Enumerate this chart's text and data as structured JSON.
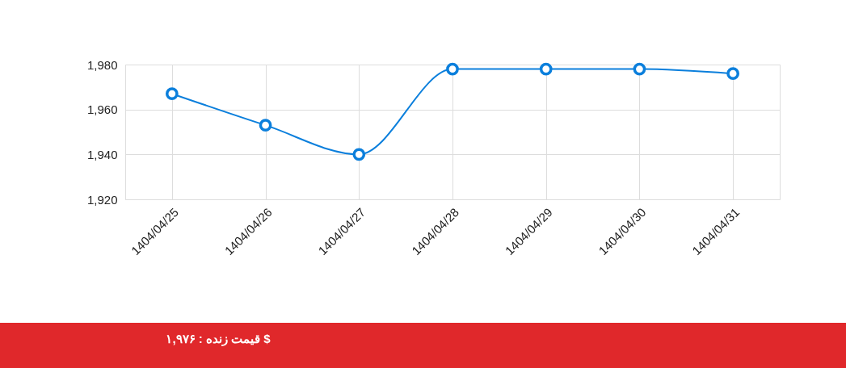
{
  "chart_data": {
    "type": "line",
    "categories": [
      "1404/04/25",
      "1404/04/26",
      "1404/04/27",
      "1404/04/28",
      "1404/04/29",
      "1404/04/30",
      "1404/04/31"
    ],
    "series": [
      {
        "color": "#0b7fdc",
        "values": [
          1967,
          1953,
          1940,
          1978,
          1978,
          1978,
          1976
        ]
      }
    ],
    "ylim": [
      1920,
      1980
    ],
    "yticks": [
      {
        "value": 1920,
        "label": "1,920"
      },
      {
        "value": 1940,
        "label": "1,940"
      },
      {
        "value": 1960,
        "label": "1,960"
      },
      {
        "value": 1980,
        "label": "1,980"
      }
    ],
    "grid": true,
    "marker": "circle",
    "line_style": "solid",
    "annotations": [
      "قیمت زنده : ۱,۹۷۶ $"
    ]
  }
}
